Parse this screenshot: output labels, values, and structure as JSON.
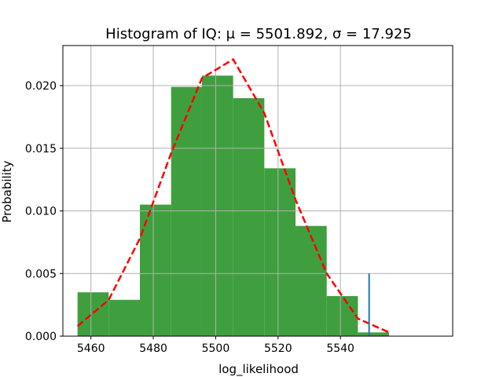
{
  "chart_data": {
    "type": "bar",
    "title": "Histogram of IQ: μ = 5501.892,  σ = 17.925",
    "xlabel": "log_likelihood",
    "ylabel": "Probability",
    "xlim": [
      5451,
      5576
    ],
    "ylim": [
      0,
      0.0232
    ],
    "xticks": [
      5460,
      5480,
      5500,
      5520,
      5540
    ],
    "yticks": [
      0.0,
      0.005,
      0.01,
      0.015,
      0.02
    ],
    "ytick_labels": [
      "0.000",
      "0.005",
      "0.010",
      "0.015",
      "0.020"
    ],
    "grid": true,
    "bar_color": "#3f9f3f",
    "bins": [
      {
        "x0": 5455.7,
        "x1": 5465.7,
        "value": 0.0035
      },
      {
        "x0": 5465.7,
        "x1": 5475.7,
        "value": 0.0029
      },
      {
        "x0": 5475.7,
        "x1": 5485.7,
        "value": 0.0105
      },
      {
        "x0": 5485.7,
        "x1": 5495.6,
        "value": 0.0199
      },
      {
        "x0": 5495.6,
        "x1": 5505.6,
        "value": 0.0208
      },
      {
        "x0": 5505.6,
        "x1": 5515.6,
        "value": 0.019
      },
      {
        "x0": 5515.6,
        "x1": 5525.6,
        "value": 0.0134
      },
      {
        "x0": 5525.6,
        "x1": 5535.6,
        "value": 0.0088
      },
      {
        "x0": 5535.6,
        "x1": 5545.6,
        "value": 0.0032
      },
      {
        "x0": 5545.6,
        "x1": 5555.6,
        "value": 0.0003
      }
    ],
    "fit_line": {
      "color": "#ff0000",
      "style": "dashed",
      "x": [
        5455.7,
        5465.7,
        5475.7,
        5485.7,
        5495.6,
        5505.6,
        5515.6,
        5525.6,
        5535.6,
        5545.6,
        5555.6
      ],
      "y": [
        0.0008,
        0.0029,
        0.0078,
        0.0146,
        0.0206,
        0.0221,
        0.0178,
        0.0109,
        0.005,
        0.0014,
        0.0003
      ]
    },
    "vline": {
      "x": 5549.2,
      "y0": 0,
      "y1": 0.005,
      "color": "#1f77b4"
    }
  }
}
